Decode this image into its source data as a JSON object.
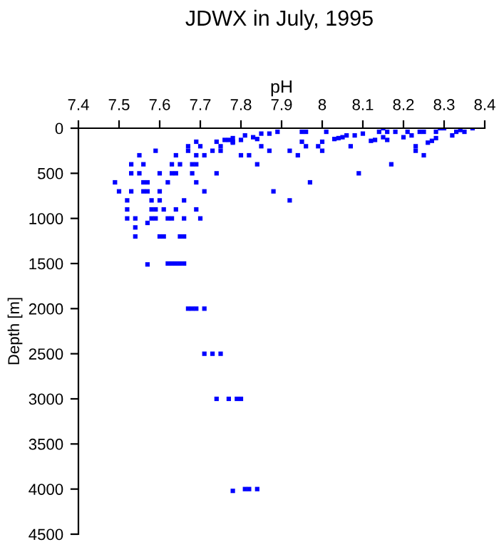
{
  "chart_data": {
    "type": "scatter",
    "title": "JDWX in July, 1995",
    "xlabel": "pH",
    "ylabel": "Depth [m]",
    "xlim": [
      7.4,
      8.4
    ],
    "xticks": [
      7.4,
      7.5,
      7.6,
      7.7,
      7.8,
      7.9,
      8,
      8.1,
      8.2,
      8.3,
      8.4
    ],
    "ylim": [
      4500,
      0
    ],
    "yticks": [
      0,
      500,
      1000,
      1500,
      2000,
      2500,
      3000,
      3500,
      4000,
      4500
    ],
    "grid": false,
    "marker": "square",
    "series": [
      {
        "color": "#0000ff",
        "x": [
          7.49,
          7.5,
          7.52,
          7.52,
          7.52,
          7.54,
          7.54,
          7.54,
          7.53,
          7.53,
          7.53,
          7.55,
          7.55,
          7.56,
          7.56,
          7.57,
          7.56,
          7.57,
          7.58,
          7.58,
          7.59,
          7.58,
          7.59,
          7.57,
          7.6,
          7.61,
          7.6,
          7.6,
          7.6,
          7.59,
          7.61,
          7.62,
          7.62,
          7.63,
          7.64,
          7.63,
          7.64,
          7.63,
          7.65,
          7.64,
          7.65,
          7.66,
          7.66,
          7.66,
          7.67,
          7.67,
          7.68,
          7.69,
          7.68,
          7.69,
          7.69,
          7.69,
          7.7,
          7.71,
          7.69,
          7.7,
          7.71,
          7.73,
          7.74,
          7.74,
          7.75,
          7.75,
          7.76,
          7.77,
          7.78,
          7.78,
          7.78,
          7.8,
          7.8,
          7.81,
          7.82,
          7.83,
          7.84,
          7.84,
          7.85,
          7.85,
          7.87,
          7.87,
          7.88,
          7.89,
          7.92,
          7.92,
          7.94,
          7.95,
          7.96,
          7.95,
          7.96,
          7.97,
          7.99,
          8.0,
          8.0,
          8.01,
          8.03,
          8.04,
          8.05,
          8.06,
          8.07,
          8.08,
          8.09,
          8.1,
          8.12,
          8.13,
          8.14,
          8.15,
          8.16,
          8.15,
          8.16,
          8.17,
          8.18,
          8.2,
          8.21,
          8.22,
          8.23,
          8.23,
          8.24,
          8.25,
          8.25,
          8.26,
          8.27,
          8.28,
          8.28,
          8.29,
          8.3,
          8.32,
          8.33,
          8.34,
          8.35,
          8.37,
          7.67,
          7.68,
          7.69,
          7.71,
          7.57,
          7.62,
          7.63,
          7.64,
          7.65,
          7.66,
          7.71,
          7.73,
          7.75,
          7.74,
          7.77,
          7.79,
          7.8,
          7.78,
          7.81,
          7.82,
          7.84
        ],
        "values": [
          600,
          700,
          800,
          900,
          1000,
          1000,
          1100,
          1200,
          700,
          500,
          400,
          500,
          300,
          400,
          600,
          600,
          700,
          700,
          800,
          900,
          900,
          1000,
          1000,
          1050,
          1200,
          1200,
          700,
          800,
          500,
          250,
          900,
          600,
          1000,
          1000,
          900,
          500,
          500,
          400,
          400,
          300,
          1200,
          1200,
          1000,
          800,
          200,
          250,
          400,
          400,
          500,
          300,
          600,
          900,
          1000,
          700,
          150,
          200,
          300,
          250,
          500,
          150,
          200,
          250,
          130,
          130,
          150,
          110,
          160,
          130,
          300,
          80,
          300,
          100,
          120,
          400,
          200,
          60,
          250,
          60,
          700,
          40,
          250,
          800,
          300,
          40,
          40,
          150,
          200,
          600,
          200,
          150,
          250,
          40,
          120,
          110,
          100,
          80,
          200,
          80,
          500,
          60,
          140,
          130,
          40,
          0,
          40,
          100,
          130,
          400,
          40,
          100,
          40,
          80,
          200,
          250,
          40,
          40,
          300,
          160,
          140,
          110,
          40,
          0,
          0,
          80,
          40,
          20,
          40,
          0,
          2000,
          2000,
          2000,
          2000,
          1510,
          1500,
          1500,
          1500,
          1500,
          1500,
          2500,
          2500,
          2500,
          3000,
          3000,
          3000,
          3000,
          4020,
          4000,
          4000,
          4000
        ]
      }
    ]
  }
}
